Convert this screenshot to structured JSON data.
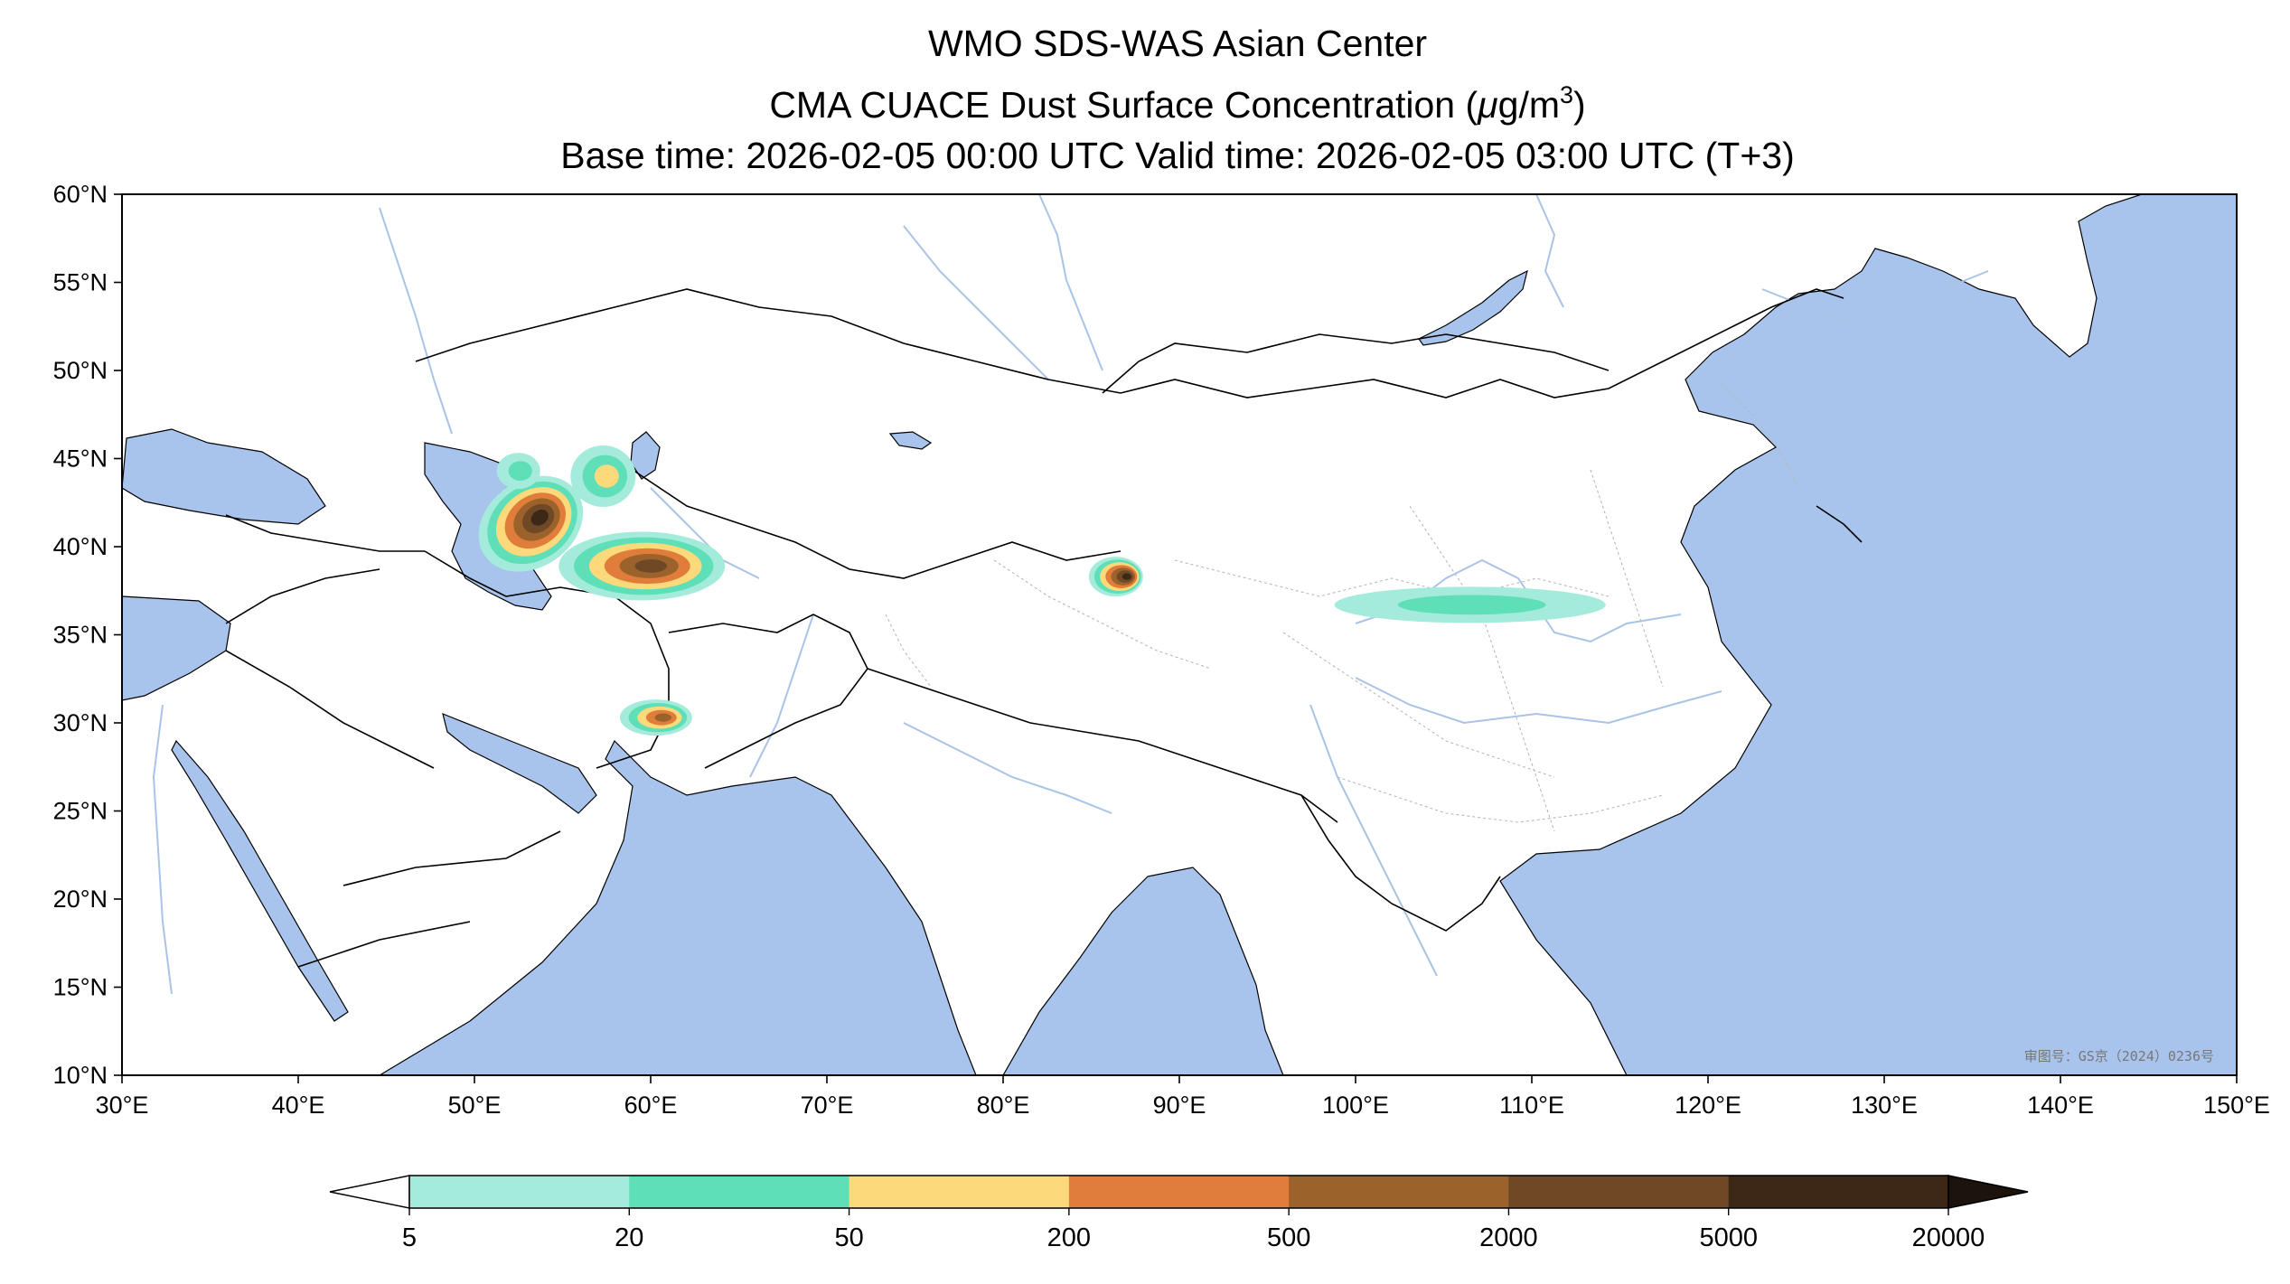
{
  "title": {
    "line1": "WMO SDS-WAS Asian Center",
    "line2_prefix": "CMA CUACE Dust Surface Concentration (",
    "line2_unit_mu": "μ",
    "line2_unit_rest": "g/m",
    "line2_unit_exp": "3",
    "line2_suffix": ")",
    "line3": "Base time: 2026-02-05 00:00 UTC Valid time: 2026-02-05 03:00 UTC (T+3)"
  },
  "map": {
    "lon_range": [
      30,
      150
    ],
    "lat_range": [
      10,
      60
    ],
    "lon_ticks": [
      {
        "value": 30,
        "label": "30°E"
      },
      {
        "value": 40,
        "label": "40°E"
      },
      {
        "value": 50,
        "label": "50°E"
      },
      {
        "value": 60,
        "label": "60°E"
      },
      {
        "value": 70,
        "label": "70°E"
      },
      {
        "value": 80,
        "label": "80°E"
      },
      {
        "value": 90,
        "label": "90°E"
      },
      {
        "value": 100,
        "label": "100°E"
      },
      {
        "value": 110,
        "label": "110°E"
      },
      {
        "value": 120,
        "label": "120°E"
      },
      {
        "value": 130,
        "label": "130°E"
      },
      {
        "value": 140,
        "label": "140°E"
      },
      {
        "value": 150,
        "label": "150°E"
      }
    ],
    "lat_ticks": [
      {
        "value": 60,
        "label": "60°N"
      },
      {
        "value": 55,
        "label": "55°N"
      },
      {
        "value": 50,
        "label": "50°N"
      },
      {
        "value": 45,
        "label": "45°N"
      },
      {
        "value": 40,
        "label": "40°N"
      },
      {
        "value": 35,
        "label": "35°N"
      },
      {
        "value": 30,
        "label": "30°N"
      },
      {
        "value": 25,
        "label": "25°N"
      },
      {
        "value": 20,
        "label": "20°N"
      },
      {
        "value": 15,
        "label": "15°N"
      },
      {
        "value": 10,
        "label": "10°N"
      }
    ],
    "colors": {
      "ocean": "#a8c4ec",
      "land": "#ffffff",
      "river": "#a9c4e6",
      "border": "#000000",
      "province": "#b9b9b9"
    },
    "watermark": "审图号：GS京（2024）0236号"
  },
  "colorbar": {
    "levels": [
      "5",
      "20",
      "50",
      "200",
      "500",
      "2000",
      "5000",
      "20000"
    ],
    "colors": [
      "#a4ebdc",
      "#5fdfb8",
      "#fcd97a",
      "#e07d3a",
      "#9c622b",
      "#6f4825",
      "#3d2716"
    ],
    "under_color": "#ffffff",
    "over_color": "#1c130c"
  },
  "dust_patches": [
    {
      "name": "caspian-east",
      "lon": 53.2,
      "lat": 41.3,
      "peak_level": 6
    },
    {
      "name": "karakum",
      "lon": 59.5,
      "lat": 38.9,
      "peak_level": 5
    },
    {
      "name": "aral",
      "lon": 57.3,
      "lat": 44.0,
      "peak_level": 2
    },
    {
      "name": "caspian-north",
      "lon": 52.5,
      "lat": 44.3,
      "peak_level": 1
    },
    {
      "name": "sistan",
      "lon": 60.3,
      "lat": 30.3,
      "peak_level": 4
    },
    {
      "name": "taklimakan",
      "lon": 86.4,
      "lat": 38.3,
      "peak_level": 6
    },
    {
      "name": "north-china-plain",
      "lon": 106.5,
      "lat": 36.7,
      "peak_level": 1
    }
  ]
}
